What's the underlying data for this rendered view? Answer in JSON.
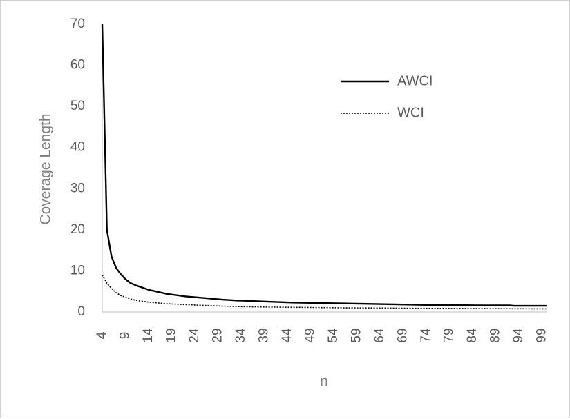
{
  "chart_data": {
    "type": "line",
    "title": "",
    "xlabel": "n",
    "ylabel": "Coverage Length",
    "ylim": [
      0,
      70
    ],
    "yticks": [
      0,
      10,
      20,
      30,
      40,
      50,
      60,
      70
    ],
    "xlim": [
      4,
      100
    ],
    "xticks": [
      4,
      9,
      14,
      19,
      24,
      29,
      34,
      39,
      44,
      49,
      54,
      59,
      64,
      69,
      74,
      79,
      84,
      89,
      94,
      99
    ],
    "grid": false,
    "legend_position": "top-right",
    "series": [
      {
        "name": "AWCI",
        "style": "solid",
        "color": "#000000",
        "x": [
          4,
          5,
          6,
          7,
          8,
          9,
          10,
          11,
          12,
          14,
          16,
          18,
          20,
          22,
          24,
          26,
          28,
          30,
          33,
          36,
          40,
          45,
          50,
          55,
          60,
          65,
          70,
          75,
          80,
          85,
          90,
          92,
          93,
          100
        ],
        "values": [
          70,
          20,
          13.5,
          10.7,
          9.2,
          8.0,
          7.1,
          6.6,
          6.2,
          5.4,
          4.9,
          4.4,
          4.1,
          3.8,
          3.6,
          3.4,
          3.2,
          3.0,
          2.8,
          2.7,
          2.5,
          2.3,
          2.2,
          2.1,
          2.0,
          1.9,
          1.8,
          1.7,
          1.7,
          1.6,
          1.6,
          1.6,
          1.5,
          1.5
        ]
      },
      {
        "name": "WCI",
        "style": "dotted",
        "color": "#000000",
        "x": [
          4,
          5,
          6,
          7,
          8,
          9,
          10,
          11,
          12,
          14,
          16,
          18,
          20,
          24,
          28,
          34,
          40,
          48,
          56,
          64,
          70,
          80,
          90,
          100
        ],
        "values": [
          9.0,
          7.0,
          5.7,
          4.7,
          4.0,
          3.6,
          3.2,
          2.9,
          2.7,
          2.4,
          2.2,
          2.0,
          1.9,
          1.7,
          1.5,
          1.3,
          1.2,
          1.1,
          1.0,
          0.95,
          0.9,
          0.85,
          0.8,
          0.75
        ]
      }
    ]
  }
}
